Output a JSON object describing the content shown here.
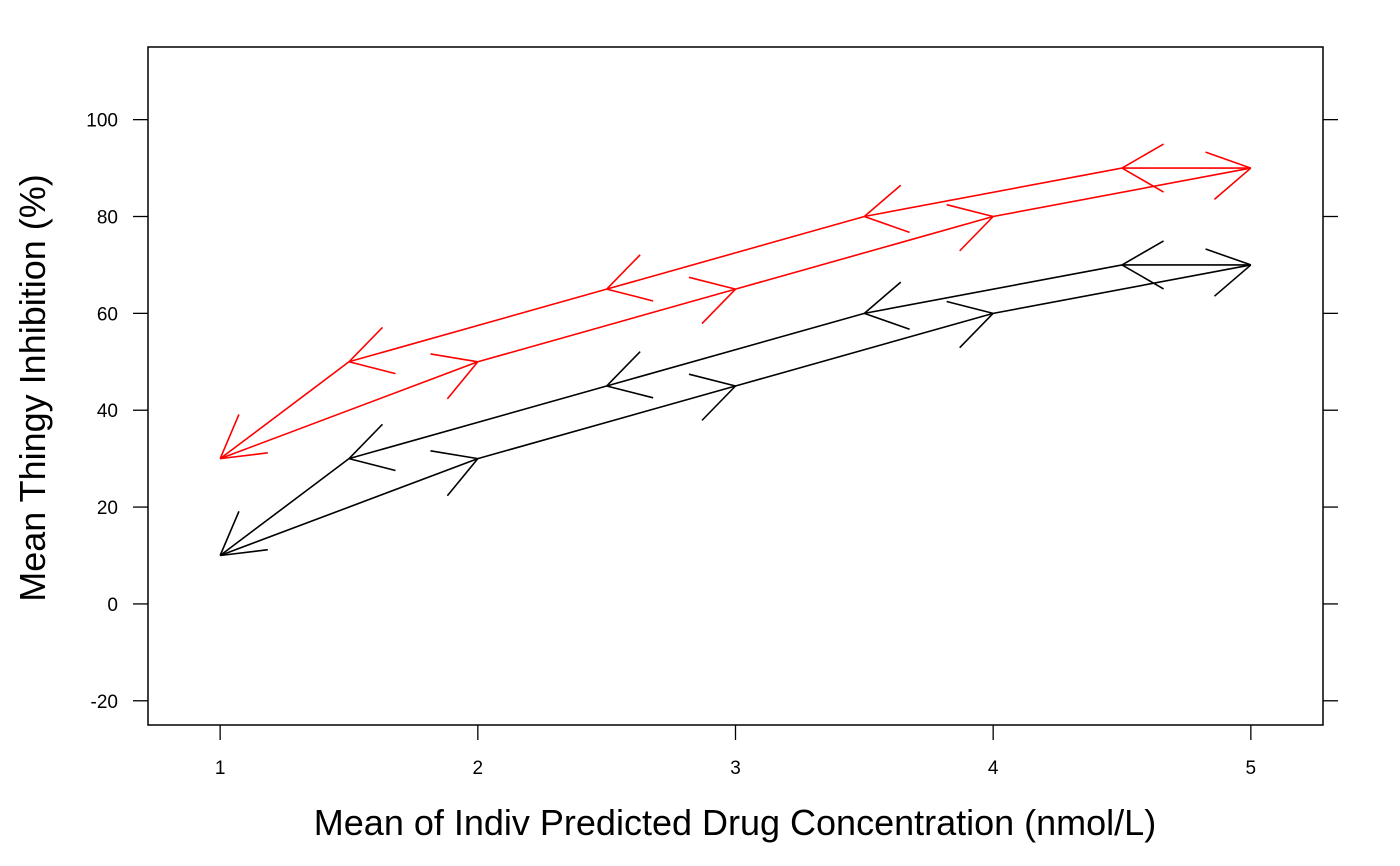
{
  "chart_data": {
    "type": "line",
    "title": "",
    "xlabel": "Mean of Indiv Predicted Drug Concentration (nmol/L)",
    "ylabel": "Mean Thingy Inhibition (%)",
    "xlim": [
      0.72,
      5.28
    ],
    "ylim": [
      -25,
      115
    ],
    "xticks": [
      1,
      2,
      3,
      4,
      5
    ],
    "yticks": [
      -20,
      0,
      20,
      40,
      60,
      80,
      100
    ],
    "grid": false,
    "legend": "none",
    "series": [
      {
        "color": "#000000",
        "x": [
          1,
          2,
          3,
          4,
          5,
          4.5,
          3.5,
          2.5,
          1.5,
          1
        ],
        "y": [
          10,
          30,
          45,
          60,
          70,
          70,
          60,
          45,
          30,
          10
        ]
      },
      {
        "color": "#ff0000",
        "x": [
          1,
          2,
          3,
          4,
          5,
          4.5,
          3.5,
          2.5,
          1.5,
          1
        ],
        "y": [
          30,
          50,
          65,
          80,
          90,
          90,
          80,
          65,
          50,
          30
        ]
      }
    ]
  }
}
